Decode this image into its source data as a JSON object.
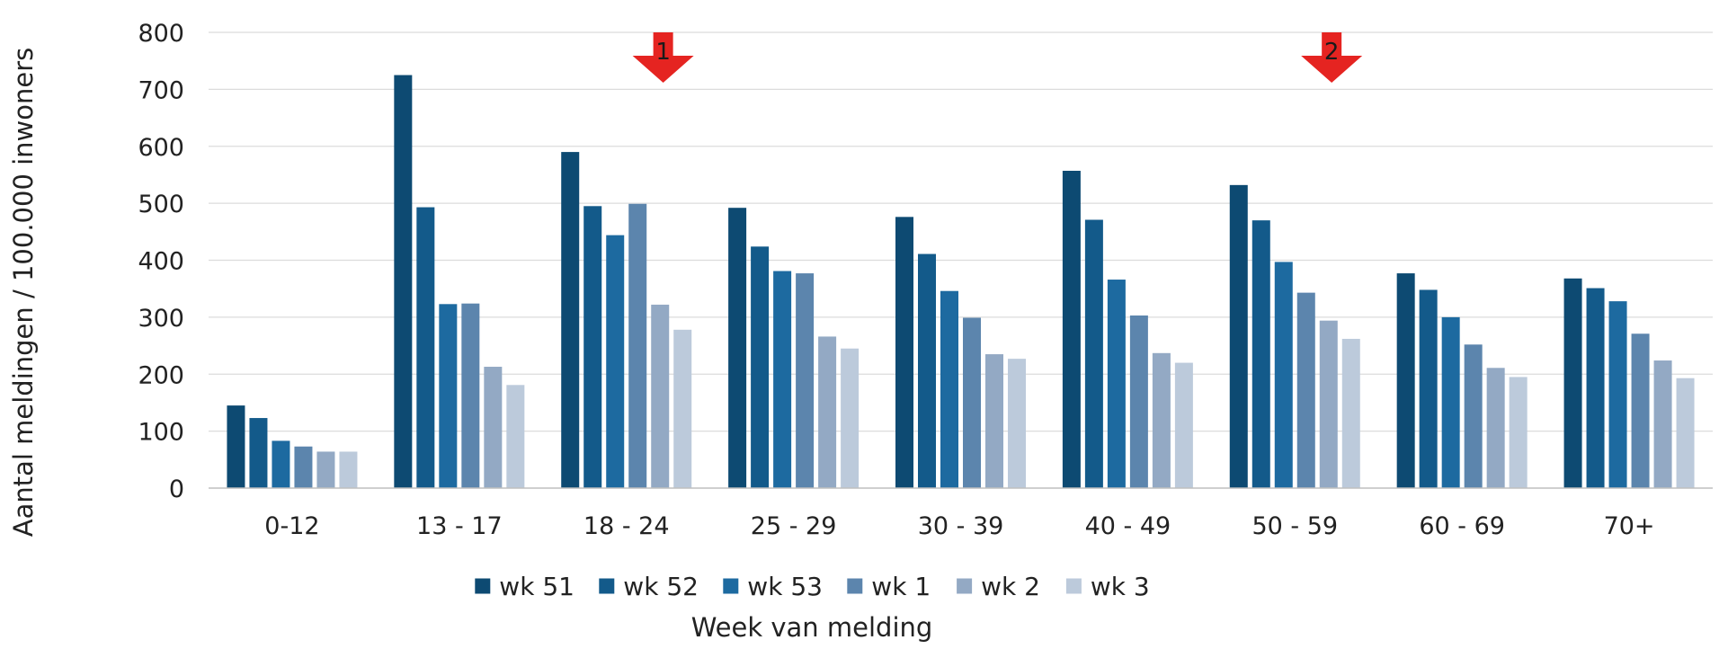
{
  "chart_data": {
    "type": "bar",
    "xlabel": "Week van melding",
    "ylabel": "Aantal meldingen / 100.000 inwoners",
    "ylim": [
      0,
      800
    ],
    "yticks": [
      "0",
      "100",
      "200",
      "300",
      "400",
      "500",
      "600",
      "700",
      "800"
    ],
    "grid": true,
    "legend_position": "bottom",
    "categories": [
      "0-12",
      "13 - 17",
      "18 - 24",
      "25 - 29",
      "30 - 39",
      "40 - 49",
      "50 - 59",
      "60 - 69",
      "70+"
    ],
    "series": [
      {
        "name": "wk 51",
        "color": "#0d4a72",
        "values": [
          145,
          725,
          590,
          492,
          476,
          557,
          532,
          377,
          368
        ]
      },
      {
        "name": "wk 52",
        "color": "#135a8a",
        "values": [
          123,
          493,
          495,
          424,
          411,
          471,
          470,
          348,
          351
        ]
      },
      {
        "name": "wk 53",
        "color": "#1d6aa0",
        "values": [
          83,
          323,
          444,
          381,
          346,
          366,
          397,
          300,
          328
        ]
      },
      {
        "name": "wk 1",
        "color": "#5c85ad",
        "values": [
          73,
          324,
          499,
          377,
          299,
          303,
          343,
          252,
          271
        ]
      },
      {
        "name": "wk 2",
        "color": "#93a9c4",
        "values": [
          64,
          213,
          322,
          266,
          235,
          237,
          294,
          211,
          224
        ]
      },
      {
        "name": "wk 3",
        "color": "#bccadb",
        "values": [
          64,
          181,
          278,
          245,
          227,
          220,
          262,
          195,
          193
        ]
      }
    ],
    "annotations": [
      {
        "label": "1",
        "category": "18 - 24",
        "color": "#e52421"
      },
      {
        "label": "2",
        "category": "50 - 59",
        "color": "#e52421"
      }
    ]
  }
}
